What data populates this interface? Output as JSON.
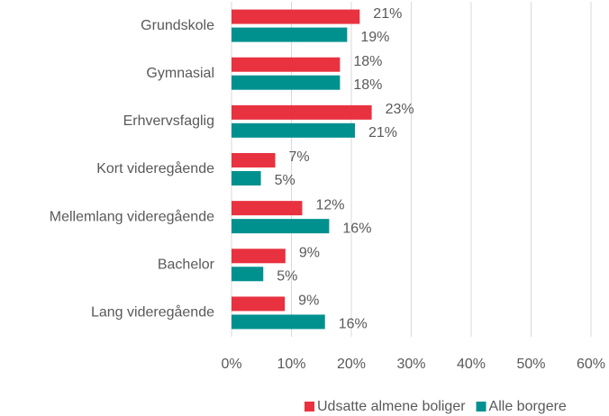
{
  "chart_data": {
    "type": "barh",
    "categories": [
      "Grundskole",
      "Gymnasial",
      "Erhvervsfaglig",
      "Kort videregående",
      "Mellemlang videregående",
      "Bachelor",
      "Lang videregående"
    ],
    "series": [
      {
        "name": "Udsatte almene boliger",
        "color": "#e8323f",
        "values": [
          21.4,
          18.1,
          23.4,
          7.3,
          11.8,
          9.0,
          8.9
        ],
        "value_labels": [
          "21%",
          "18%",
          "23%",
          "7%",
          "12%",
          "9%",
          "9%"
        ]
      },
      {
        "name": "Alle borgere",
        "color": "#00918f",
        "values": [
          19.3,
          18.1,
          20.6,
          4.9,
          16.3,
          5.3,
          15.6
        ],
        "value_labels": [
          "19%",
          "18%",
          "21%",
          "5%",
          "16%",
          "5%",
          "16%"
        ]
      }
    ],
    "xlim": [
      0,
      60
    ],
    "xticks": [
      {
        "value": 0,
        "label": "0%"
      },
      {
        "value": 10,
        "label": "10%"
      },
      {
        "value": 20,
        "label": "20%"
      },
      {
        "value": 30,
        "label": "30%"
      },
      {
        "value": 40,
        "label": "40%"
      },
      {
        "value": 50,
        "label": "50%"
      },
      {
        "value": 60,
        "label": "60%"
      }
    ],
    "grid": true,
    "legend": "bottom"
  }
}
